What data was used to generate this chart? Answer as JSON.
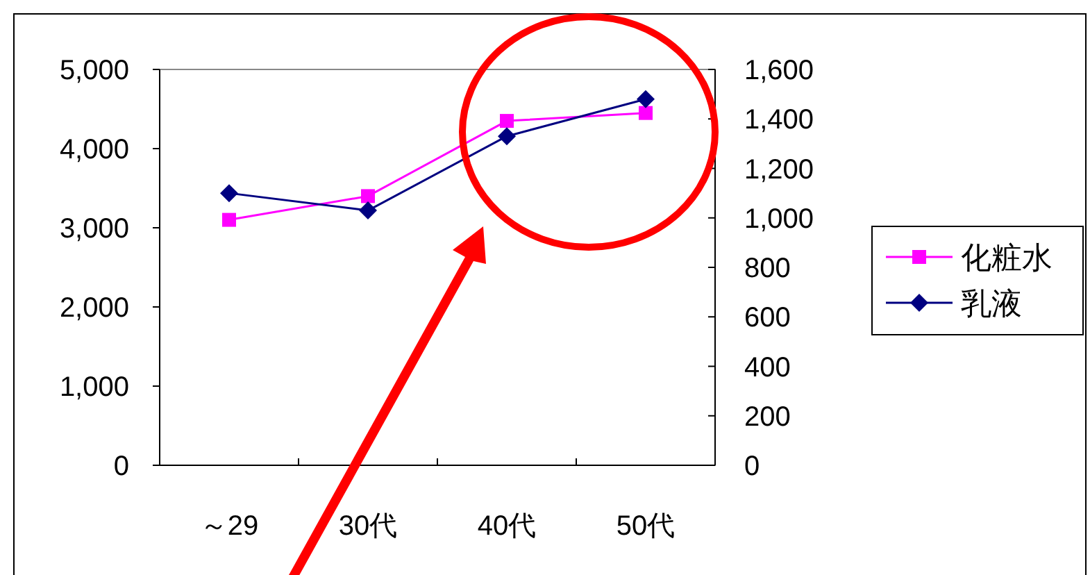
{
  "chart_data": {
    "type": "line",
    "categories": [
      "～29",
      "30代",
      "40代",
      "50代"
    ],
    "series": [
      {
        "name": "化粧水",
        "color": "#ff00ff",
        "marker": "square",
        "values": [
          3100,
          3400,
          4350,
          4450
        ]
      },
      {
        "name": "乳液",
        "color": "#000080",
        "marker": "diamond",
        "axis": "y2",
        "values": [
          1100,
          1030,
          1330,
          1480
        ]
      }
    ],
    "ylim": [
      0,
      5000
    ],
    "yticks": [
      0,
      {
        "value": 1000,
        "label": "1,000"
      },
      {
        "value": 2000,
        "label": "2,000"
      },
      {
        "value": 3000,
        "label": "3,000"
      },
      {
        "value": 4000,
        "label": "4,000"
      },
      {
        "value": 5000,
        "label": "5,000"
      }
    ],
    "y2lim": [
      0,
      1600
    ],
    "y2ticks": [
      0,
      200,
      400,
      600,
      800,
      {
        "value": 1000,
        "label": "1,000"
      },
      {
        "value": 1200,
        "label": "1,200"
      },
      {
        "value": 1400,
        "label": "1,400"
      },
      {
        "value": 1600,
        "label": "1,600"
      }
    ],
    "legend": "right",
    "grid": false
  }
}
